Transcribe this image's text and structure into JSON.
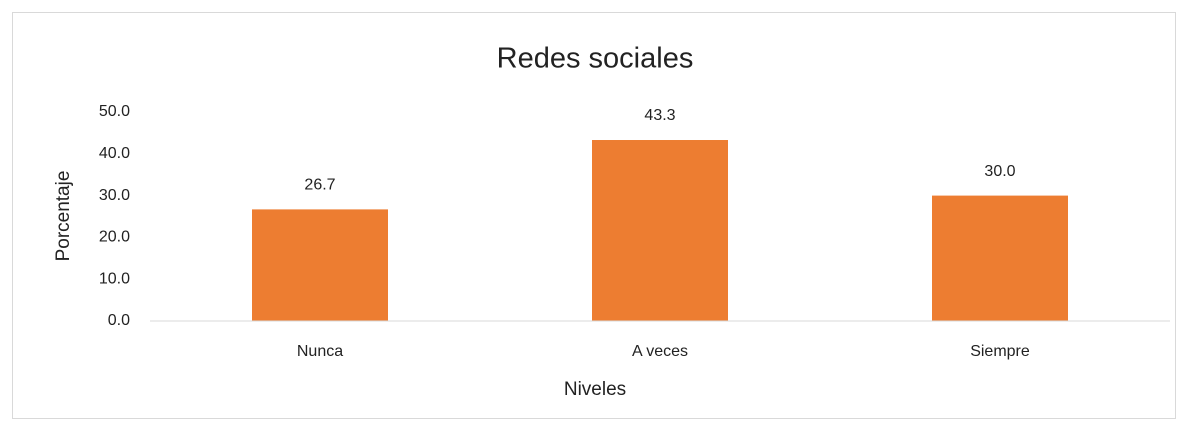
{
  "chart_data": {
    "type": "bar",
    "title": "Redes sociales",
    "categories": [
      "Nunca",
      "A veces",
      "Siempre"
    ],
    "values": [
      26.7,
      43.3,
      30.0
    ],
    "value_labels": [
      "26.7",
      "43.3",
      "30.0"
    ],
    "color": "#ed7d31",
    "x_label": "Niveles",
    "y_label": "Porcentaje",
    "ylim": [
      0,
      50
    ],
    "yticks": [
      {
        "value": 0,
        "label": "0.0"
      },
      {
        "value": 10,
        "label": "10.0"
      },
      {
        "value": 20,
        "label": "20.0"
      },
      {
        "value": 30,
        "label": "30.0"
      },
      {
        "value": 40,
        "label": "40.0"
      },
      {
        "value": 50,
        "label": "50.0"
      }
    ],
    "grid": false
  }
}
